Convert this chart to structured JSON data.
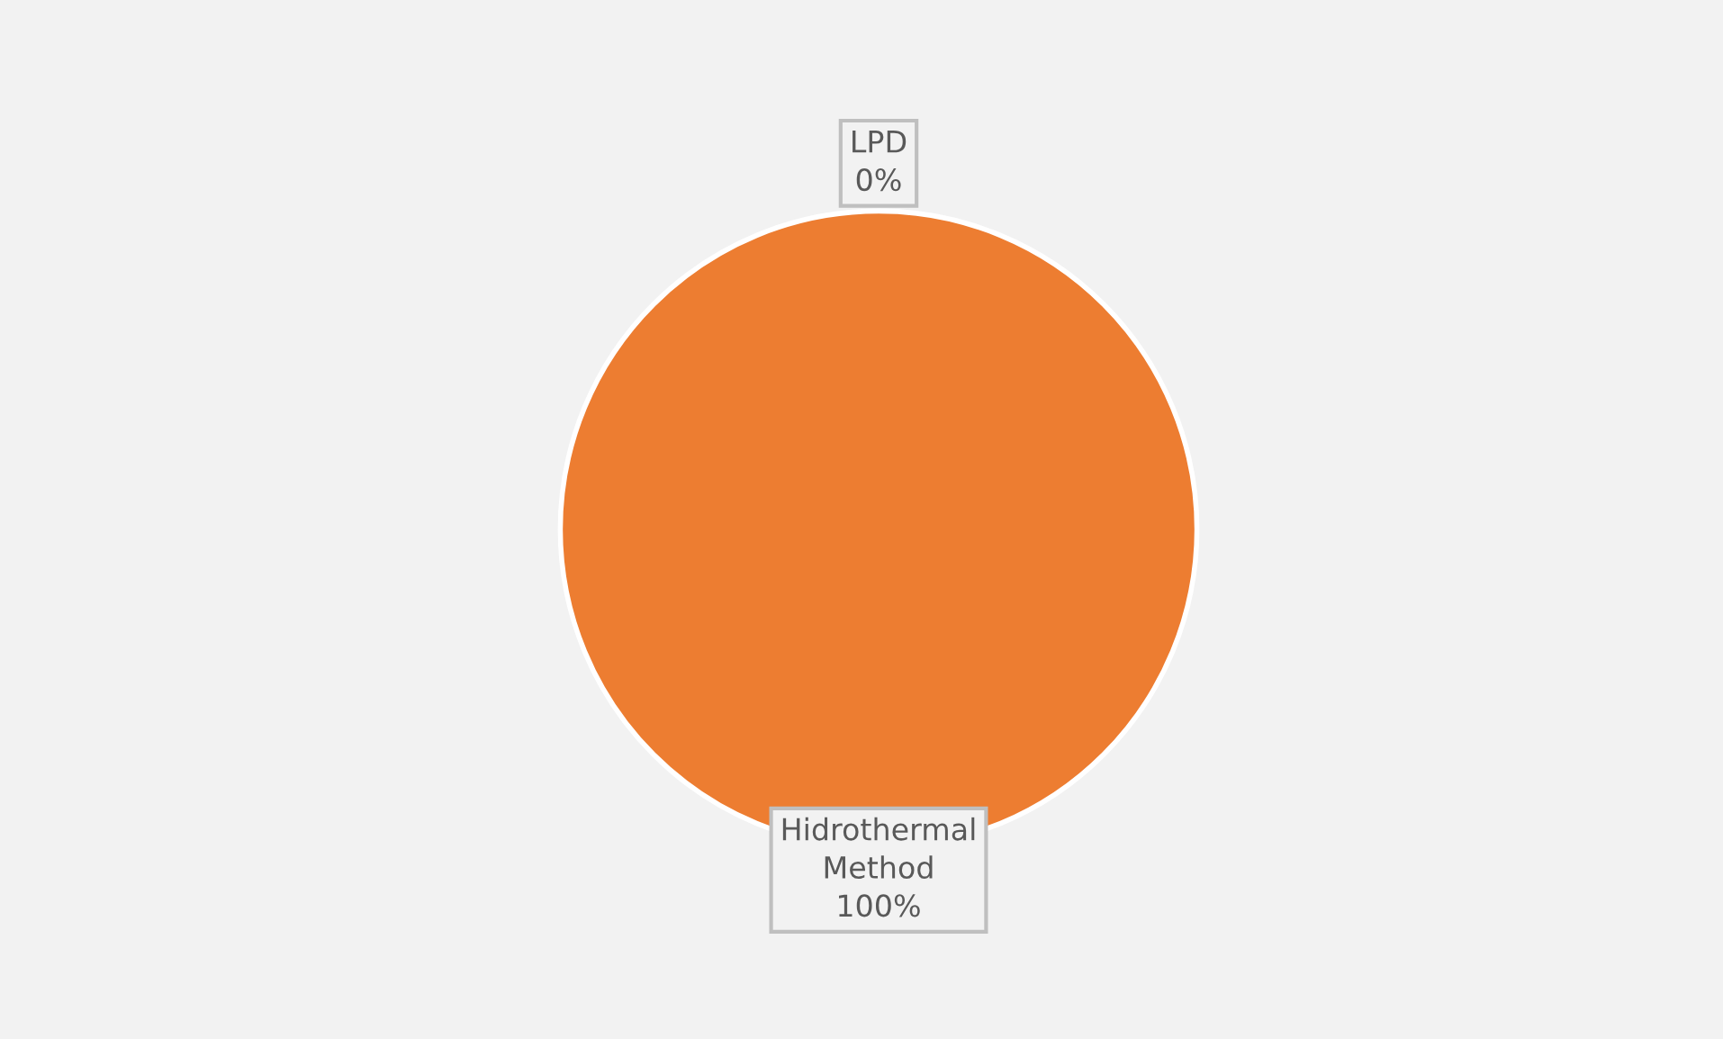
{
  "chart_data": {
    "type": "pie",
    "categories": [
      "LPD",
      "Hidrothermal\nMethod"
    ],
    "values": [
      0,
      100
    ],
    "colors": [
      "#4472c4",
      "#ed7d31"
    ],
    "value_labels": [
      "0%",
      "100%"
    ],
    "legend": false
  }
}
